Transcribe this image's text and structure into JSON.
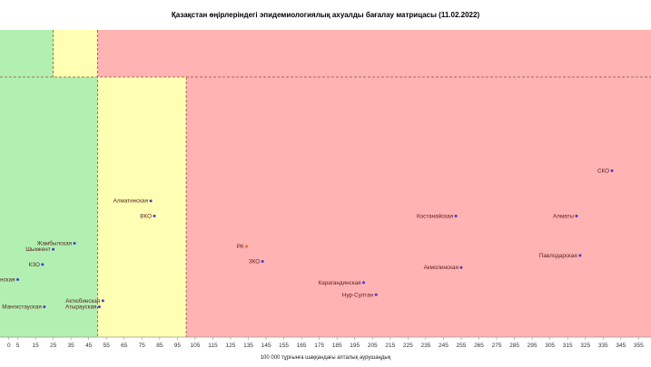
{
  "chart_data": {
    "type": "scatter",
    "title": "Қазақстан өңірлеріндегі эпидемиологиялық ахуалды бағалау матрицасы  (11.02.2022)",
    "xlabel": "100 000 тұрғынға шаққандағы апталық аурушаңдық",
    "ylabel": "",
    "xlim": [
      -5,
      362
    ],
    "xticks": [
      0,
      5,
      15,
      25,
      35,
      45,
      55,
      65,
      75,
      85,
      95,
      105,
      115,
      125,
      135,
      145,
      155,
      165,
      175,
      185,
      195,
      205,
      215,
      225,
      235,
      245,
      255,
      265,
      275,
      285,
      295,
      305,
      315,
      325,
      335,
      345,
      355
    ],
    "grid": false,
    "zones": [
      {
        "color": "#b2f0b2",
        "x_to": 50,
        "band": "lower"
      },
      {
        "color": "#ffffb3",
        "x_from": 50,
        "x_to": 100,
        "band": "lower"
      },
      {
        "color": "#ffb3b3",
        "x_from": 100,
        "band": "lower"
      },
      {
        "color": "#b2f0b2",
        "x_to": 25,
        "band": "upper"
      },
      {
        "color": "#ffffb3",
        "x_from": 25,
        "x_to": 50,
        "band": "upper"
      },
      {
        "color": "#ffb3b3",
        "x_from": 50,
        "band": "upper"
      }
    ],
    "points": [
      {
        "label": "СКО",
        "x": 340,
        "y": 77
      },
      {
        "label": "Алматы",
        "x": 320,
        "y": 62
      },
      {
        "label": "Костанайская",
        "x": 252,
        "y": 62
      },
      {
        "label": "Павлодарская",
        "x": 322,
        "y": 49
      },
      {
        "label": "Акмолинская",
        "x": 255,
        "y": 45
      },
      {
        "label": "Карагандинская",
        "x": 200,
        "y": 40
      },
      {
        "label": "Нур-Султан",
        "x": 207,
        "y": 36
      },
      {
        "label": "РК",
        "x": 134,
        "y": 52,
        "highlight": "#ff6600"
      },
      {
        "label": "ЗКО",
        "x": 143,
        "y": 47
      },
      {
        "label": "Алматинская",
        "x": 80,
        "y": 67
      },
      {
        "label": "ВКО",
        "x": 82,
        "y": 62
      },
      {
        "label": "Жамбылская",
        "x": 37,
        "y": 53
      },
      {
        "label": "Шымкент",
        "x": 25,
        "y": 51
      },
      {
        "label": "КЗО",
        "x": 19,
        "y": 46
      },
      {
        "label": "Туркестанская",
        "x": 5,
        "y": 41
      },
      {
        "label": "Мангистауская",
        "x": 20,
        "y": 32
      },
      {
        "label": "Актюбинская",
        "x": 53,
        "y": 34
      },
      {
        "label": "Атырауская",
        "x": 51,
        "y": 32
      }
    ]
  }
}
